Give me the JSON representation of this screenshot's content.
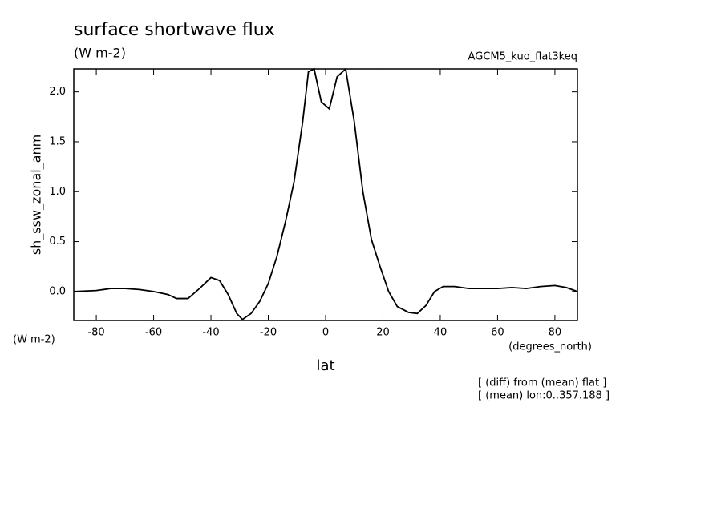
{
  "chart_data": {
    "type": "line",
    "title": "surface shortwave flux",
    "subtitle": "(W m-2)",
    "run_label": "AGCM5_kuo_flat3keq",
    "y_label": "sh_ssw_zonal_anm",
    "x_label": "lat",
    "y_unit": "(W m-2)",
    "x_unit": "(degrees_north)",
    "notes": [
      "[ (diff) from (mean) flat ]",
      "[ (mean) lon:0..357.188 ]"
    ],
    "x": [
      -87.86,
      -80,
      -75,
      -70,
      -65,
      -60,
      -55,
      -52,
      -48,
      -44,
      -40,
      -37,
      -34,
      -31,
      -29,
      -26,
      -23,
      -20,
      -17,
      -14,
      -11,
      -8,
      -6,
      -4,
      -1.5,
      1.3,
      4,
      7,
      10,
      13,
      16,
      19,
      22,
      25,
      29,
      32,
      35,
      38,
      41,
      45,
      50,
      60,
      65,
      70,
      75,
      80,
      84,
      87.86
    ],
    "series": [
      {
        "name": "sh_ssw_zonal_anm",
        "color": "#000000",
        "values": [
          0.0,
          0.01,
          0.03,
          0.03,
          0.02,
          0.0,
          -0.03,
          -0.07,
          -0.07,
          0.03,
          0.14,
          0.11,
          -0.03,
          -0.22,
          -0.28,
          -0.22,
          -0.1,
          0.08,
          0.35,
          0.7,
          1.1,
          1.7,
          2.2,
          2.23,
          1.9,
          1.83,
          2.15,
          2.23,
          1.7,
          1.0,
          0.52,
          0.25,
          0.0,
          -0.15,
          -0.21,
          -0.22,
          -0.14,
          0.0,
          0.05,
          0.05,
          0.03,
          0.03,
          0.04,
          0.03,
          0.05,
          0.06,
          0.04,
          0.0
        ]
      }
    ],
    "xlim": [
      -87.86,
      87.86
    ],
    "ylim": [
      -0.29,
      2.23
    ],
    "xticks": [
      -80,
      -60,
      -40,
      -20,
      0,
      20,
      40,
      60,
      80
    ],
    "yticks": [
      {
        "value": 0,
        "label": "0.0"
      },
      0.5,
      {
        "value": 1,
        "label": "1.0"
      },
      1.5,
      {
        "value": 2,
        "label": "2.0"
      }
    ]
  }
}
